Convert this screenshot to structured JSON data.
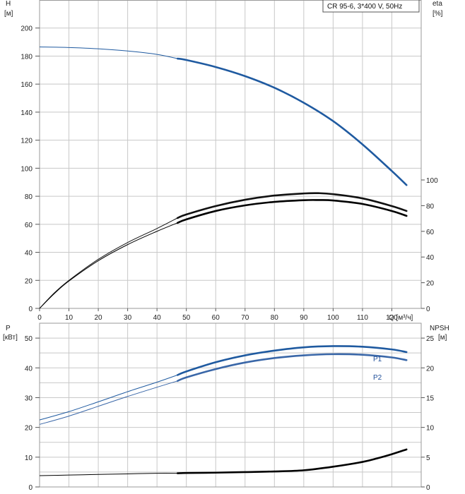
{
  "chart_data": [
    {
      "type": "line",
      "title": "CR 95-6, 3*400 V, 50Hz",
      "left_axis": {
        "label_line1": "H",
        "label_line2": "[м]",
        "range": [
          0,
          220
        ],
        "ticks": [
          "0",
          "20",
          "40",
          "60",
          "80",
          "100",
          "120",
          "140",
          "160",
          "180",
          "200"
        ]
      },
      "right_axis": {
        "label_line1": "eta",
        "label_line2": "[%]",
        "range": [
          0,
          100
        ],
        "ticks": [
          "0",
          "20",
          "40",
          "60",
          "80",
          "100"
        ]
      },
      "x_axis": {
        "label": "Q [м³/ч]",
        "range": [
          0,
          130
        ],
        "ticks": [
          "0",
          "10",
          "20",
          "30",
          "40",
          "50",
          "60",
          "70",
          "80",
          "90",
          "100",
          "110",
          "120"
        ]
      },
      "grid": true,
      "series": [
        {
          "name": "",
          "axis": "left",
          "color": "#1f5aa0",
          "x": [
            0,
            10,
            20,
            30,
            40,
            47,
            50,
            60,
            70,
            80,
            90,
            100,
            110,
            120,
            125
          ],
          "y": [
            186.5,
            186.1,
            185.2,
            183.6,
            181.2,
            178.2,
            177.2,
            172.2,
            165.7,
            157.4,
            146.7,
            133.6,
            117.0,
            98.0,
            88.0
          ]
        },
        {
          "name": "",
          "axis": "left",
          "color": "#111111",
          "x": [
            0,
            5,
            10,
            20,
            30,
            40,
            47,
            50,
            60,
            70,
            80,
            90,
            95,
            100,
            110,
            120,
            125
          ],
          "y": [
            0,
            11,
            20,
            35,
            47,
            57,
            64.5,
            67,
            73,
            77.5,
            80.5,
            82,
            82.2,
            81.5,
            78.5,
            73,
            69.5
          ]
        },
        {
          "name": "",
          "axis": "left",
          "color": "#000000",
          "x": [
            0,
            5,
            10,
            20,
            30,
            40,
            47,
            50,
            60,
            70,
            80,
            90,
            95,
            100,
            110,
            120,
            125
          ],
          "y": [
            0,
            10.5,
            19.5,
            34,
            45.5,
            55,
            61,
            63.5,
            69.5,
            73.5,
            76,
            77.2,
            77.3,
            77,
            74.5,
            69.5,
            66
          ]
        }
      ]
    },
    {
      "type": "line",
      "left_axis": {
        "label_line1": "P",
        "label_line2": "[кВт]",
        "range": [
          0,
          55
        ],
        "ticks": [
          "0",
          "10",
          "20",
          "30",
          "40",
          "50"
        ]
      },
      "right_axis": {
        "label_line1": "NPSH",
        "label_line2": "[м]",
        "range": [
          0,
          27.5
        ],
        "ticks": [
          "0",
          "5",
          "10",
          "15",
          "20",
          "25"
        ]
      },
      "x_axis": {
        "range": [
          0,
          130
        ]
      },
      "grid": true,
      "series": [
        {
          "name": "P1",
          "axis": "left",
          "color": "#1f5aa0",
          "x": [
            0,
            10,
            20,
            30,
            40,
            47,
            50,
            60,
            70,
            80,
            90,
            100,
            110,
            120,
            125
          ],
          "y": [
            22.5,
            25.3,
            28.6,
            32,
            35.2,
            37.6,
            38.8,
            41.9,
            44.2,
            45.8,
            46.9,
            47.3,
            47.1,
            46.2,
            45.3
          ]
        },
        {
          "name": "P2",
          "axis": "left",
          "color": "#3a67a8",
          "x": [
            0,
            10,
            20,
            30,
            40,
            47,
            50,
            60,
            70,
            80,
            90,
            100,
            110,
            120,
            125
          ],
          "y": [
            21,
            23.8,
            27.1,
            30.4,
            33.5,
            35.6,
            36.8,
            39.6,
            41.8,
            43.3,
            44.2,
            44.6,
            44.4,
            43.5,
            42.6
          ]
        },
        {
          "name": "",
          "axis": "right",
          "color": "#000000",
          "x": [
            0,
            10,
            20,
            30,
            40,
            47,
            50,
            60,
            70,
            80,
            90,
            100,
            110,
            115,
            120,
            125
          ],
          "y": [
            1.9,
            2.0,
            2.1,
            2.2,
            2.3,
            2.3,
            2.35,
            2.4,
            2.5,
            2.6,
            2.8,
            3.4,
            4.2,
            4.8,
            5.5,
            6.3
          ]
        }
      ]
    }
  ]
}
